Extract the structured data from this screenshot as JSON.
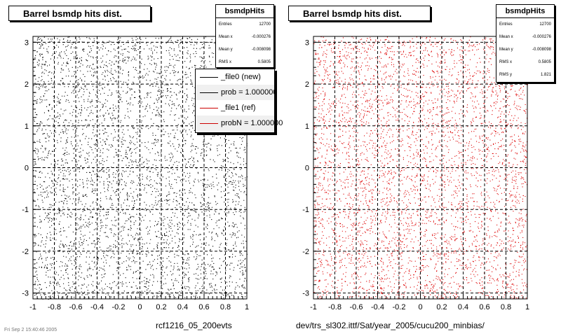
{
  "chart_data": [
    {
      "type": "scatter",
      "title": "Barrel bsmdp hits dist.",
      "xlabel": "rcf1216_05_200evts",
      "marker_color": "#000000",
      "xlim": [
        -1,
        1
      ],
      "ylim": [
        -3.14,
        3.14
      ],
      "xticks": [
        "-1",
        "-0.8",
        "-0.6",
        "-0.4",
        "-0.2",
        "0",
        "0.2",
        "0.4",
        "0.6",
        "0.8",
        "1"
      ],
      "yticks": [
        "-3",
        "-2",
        "-1",
        "0",
        "1",
        "2",
        "3"
      ],
      "grid": true,
      "stats": {
        "name": "bsmdpHits",
        "rows": [
          {
            "label": "Entries",
            "value": "12700"
          },
          {
            "label": "Mean x",
            "value": "-0.000276"
          },
          {
            "label": "Mean y",
            "value": "-0.008098"
          },
          {
            "label": "RMS x",
            "value": "0.5805"
          }
        ]
      },
      "legend": {
        "placement": "top-right",
        "entries": [
          {
            "label": "_file0 (new)",
            "color": "#000000"
          },
          {
            "label": "prob = 1.000000",
            "color": "#000000"
          },
          {
            "label": "_file1 (ref)",
            "color": "#cc0000"
          },
          {
            "label": "probN = 1.000000",
            "color": "#cc0000"
          }
        ]
      }
    },
    {
      "type": "scatter",
      "title": "Barrel bsmdp hits dist.",
      "xlabel": "dev/trs_sl302.ittf/Sat/year_2005/cucu200_minbias/",
      "marker_color": "#dd0000",
      "xlim": [
        -1,
        1
      ],
      "ylim": [
        -3.14,
        3.14
      ],
      "xticks": [
        "-1",
        "-0.8",
        "-0.6",
        "-0.4",
        "-0.2",
        "0",
        "0.2",
        "0.4",
        "0.6",
        "0.8",
        "1"
      ],
      "yticks": [
        "-3",
        "-2",
        "-1",
        "0",
        "1",
        "2",
        "3"
      ],
      "grid": true,
      "stats": {
        "name": "bsmdpHits",
        "rows": [
          {
            "label": "Entries",
            "value": "12700"
          },
          {
            "label": "Mean x",
            "value": "-0.000276"
          },
          {
            "label": "Mean y",
            "value": "-0.008098"
          },
          {
            "label": "RMS x",
            "value": "0.5805"
          },
          {
            "label": "RMS y",
            "value": "1.821"
          }
        ]
      }
    }
  ],
  "footer_stamp": "Fri Sep 2 15:40:46 2005"
}
